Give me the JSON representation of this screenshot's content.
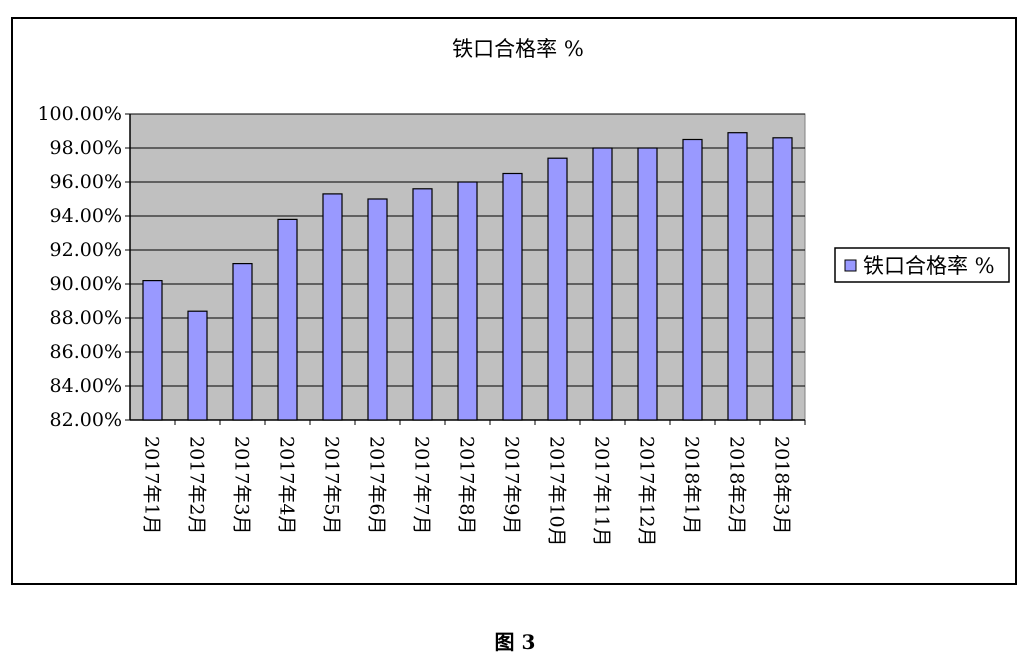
{
  "chart_data": {
    "type": "bar",
    "title": "铁口合格率 %",
    "categories": [
      "2017年1月",
      "2017年2月",
      "2017年3月",
      "2017年4月",
      "2017年5月",
      "2017年6月",
      "2017年7月",
      "2017年8月",
      "2017年9月",
      "2017年10月",
      "2017年11月",
      "2017年12月",
      "2018年1月",
      "2018年2月",
      "2018年3月"
    ],
    "series": [
      {
        "name": "铁口合格率 %",
        "values": [
          90.2,
          88.4,
          91.2,
          93.8,
          95.3,
          95.0,
          95.6,
          96.0,
          96.5,
          97.4,
          98.0,
          98.0,
          98.5,
          98.9,
          98.6
        ]
      }
    ],
    "ylim": [
      82,
      100
    ],
    "yticks": [
      "82.00%",
      "84.00%",
      "86.00%",
      "88.00%",
      "90.00%",
      "92.00%",
      "94.00%",
      "96.00%",
      "98.00%",
      "100.00%"
    ],
    "grid": true,
    "legend": "right",
    "colors": {
      "bar": "#9999ff",
      "plot_bg": "#c0c0c0",
      "grid": "#000000"
    }
  },
  "caption": "图 3"
}
